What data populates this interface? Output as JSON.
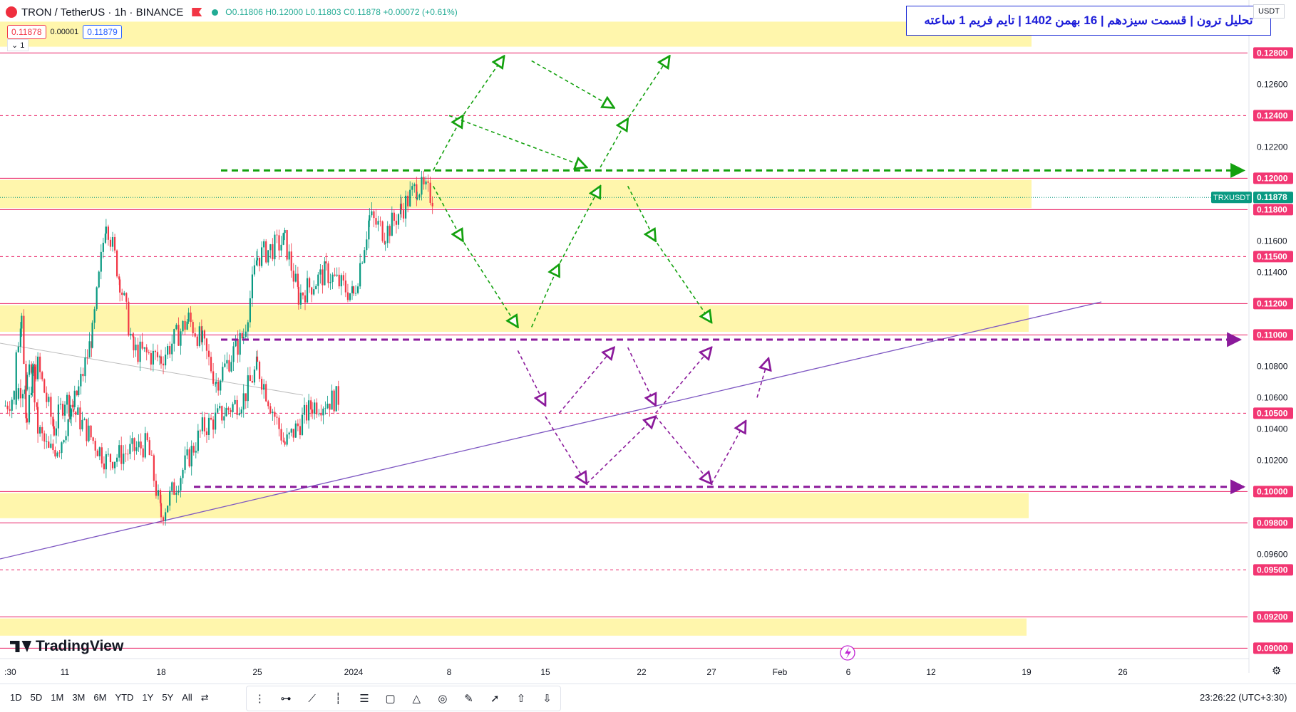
{
  "header": {
    "symbol": "TRON / TetherUS · 1h · BINANCE",
    "ohlc_open": "O0.11806",
    "ohlc_high": "H0.12000",
    "ohlc_low": "L0.11803",
    "ohlc_close": "C0.11878",
    "ohlc_change": "+0.00072 (+0.61%)"
  },
  "quote": {
    "sell": "0.11878",
    "spread": "0.00001",
    "buy": "0.11879"
  },
  "indicator_toggle": "1",
  "title": "تحلیل ترون | قسمت سیزدهم | 16 بهمن 1402 | تایم فریم 1 ساعته",
  "currency": "USDT",
  "brand": "TradingView",
  "periods": [
    "1D",
    "5D",
    "1M",
    "3M",
    "6M",
    "YTD",
    "1Y",
    "5Y",
    "All"
  ],
  "clock": "23:26:22 (UTC+3:30)",
  "icons": [
    "compare-icon",
    "crosshair-icon",
    "trendline-icon",
    "vertical-line-icon",
    "fib-icon",
    "rectangle-icon",
    "triangle-icon",
    "circle-icon",
    "brush-icon",
    "arrow-icon",
    "arrow-up-icon",
    "arrow-down-icon",
    "settings-icon",
    "lightning-icon"
  ],
  "chart_data": {
    "type": "candlestick",
    "symbol_label": "TRXUSDT",
    "last_price": "0.11878",
    "y_axis": {
      "range": [
        0.0897,
        0.1302
      ],
      "ticks": [
        "0.12600",
        "0.12200",
        "0.11600",
        "0.11400",
        "0.10800",
        "0.10600",
        "0.10400",
        "0.10200",
        "0.09600"
      ],
      "highlighted": [
        "0.12800",
        "0.12400",
        "0.12000",
        "0.11800",
        "0.11500",
        "0.11200",
        "0.11000",
        "0.10500",
        "0.10000",
        "0.09800",
        "0.09500",
        "0.09200",
        "0.09000"
      ]
    },
    "x_axis": {
      "ticks": [
        "30",
        "11",
        "18",
        "25",
        "2024",
        "8",
        "15",
        "22",
        "27",
        "Feb",
        "6",
        "12",
        "19",
        "26"
      ]
    },
    "support_resistance": [
      {
        "price": 0.128,
        "style": "solid"
      },
      {
        "price": 0.124,
        "style": "dashed"
      },
      {
        "price": 0.12,
        "style": "solid"
      },
      {
        "price": 0.118,
        "style": "solid"
      },
      {
        "price": 0.115,
        "style": "dashed"
      },
      {
        "price": 0.112,
        "style": "solid"
      },
      {
        "price": 0.11,
        "style": "solid"
      },
      {
        "price": 0.105,
        "style": "dashed"
      },
      {
        "price": 0.1,
        "style": "solid"
      },
      {
        "price": 0.098,
        "style": "solid"
      },
      {
        "price": 0.095,
        "style": "dashed"
      },
      {
        "price": 0.092,
        "style": "solid"
      },
      {
        "price": 0.09,
        "style": "solid"
      }
    ],
    "zones": [
      {
        "top": 0.13,
        "bottom": 0.1284
      },
      {
        "top": 0.1199,
        "bottom": 0.1181
      },
      {
        "top": 0.1119,
        "bottom": 0.1102
      },
      {
        "top": 0.0999,
        "bottom": 0.0983
      },
      {
        "top": 0.0919,
        "bottom": 0.0908
      }
    ],
    "price_path": [
      {
        "date": "Dec 31",
        "price": 0.1055
      },
      {
        "date": "Jan 6",
        "price": 0.108
      },
      {
        "date": "Jan 9",
        "price": 0.104
      },
      {
        "date": "Jan 11",
        "price": 0.106
      },
      {
        "date": "Jan 14",
        "price": 0.102
      },
      {
        "date": "Jan 17",
        "price": 0.103
      },
      {
        "date": "Jan 18",
        "price": 0.0985
      },
      {
        "date": "Jan 21",
        "price": 0.104
      },
      {
        "date": "Jan 24",
        "price": 0.106
      },
      {
        "date": "Jan 25",
        "price": 0.108
      },
      {
        "date": "Jan 27",
        "price": 0.103
      },
      {
        "date": "Jan 29",
        "price": 0.1055
      },
      {
        "date": "Jan 31",
        "price": 0.106
      },
      {
        "date": "Jan 2 2024",
        "price": 0.1095
      },
      {
        "date": "Jan 3 2024",
        "price": 0.1105
      },
      {
        "date": "Jan 4 2024",
        "price": 0.104
      },
      {
        "date": "Jan 5 2024",
        "price": 0.1075
      },
      {
        "date": "Jan 6 2024",
        "price": 0.104
      },
      {
        "date": "Jan 8 2024",
        "price": 0.1025
      },
      {
        "date": "Jan 10 2024",
        "price": 0.103
      },
      {
        "date": "Jan 12 2024",
        "price": 0.1065
      },
      {
        "date": "Jan 13 2024",
        "price": 0.11
      },
      {
        "date": "Jan 14 2024",
        "price": 0.1175
      },
      {
        "date": "Jan 15 2024",
        "price": 0.1135
      },
      {
        "date": "Jan 16 2024",
        "price": 0.109
      },
      {
        "date": "Jan 18 2024",
        "price": 0.1085
      },
      {
        "date": "Jan 20 2024",
        "price": 0.111
      },
      {
        "date": "Jan 21 2024",
        "price": 0.1095
      },
      {
        "date": "Jan 22 2024",
        "price": 0.107
      },
      {
        "date": "Jan 24 2024",
        "price": 0.11
      },
      {
        "date": "Jan 25 2024",
        "price": 0.115
      },
      {
        "date": "Jan 27 2024",
        "price": 0.116
      },
      {
        "date": "Jan 28 2024",
        "price": 0.1125
      },
      {
        "date": "Jan 30 2024",
        "price": 0.114
      },
      {
        "date": "Feb 1 2024",
        "price": 0.1125
      },
      {
        "date": "Feb 2 2024",
        "price": 0.1175
      },
      {
        "date": "Feb 3 2024",
        "price": 0.1165
      },
      {
        "date": "Feb 4 2024",
        "price": 0.118
      },
      {
        "date": "Feb 5 2024",
        "price": 0.1195
      },
      {
        "date": "Feb 6 2024",
        "price": 0.1188
      }
    ],
    "scenarios": {
      "green_paths": [
        [
          [
            "Feb 6",
            0.1205
          ],
          [
            "Feb 8",
            0.124
          ],
          [
            "Feb 11",
            0.1278
          ]
        ],
        [
          [
            "Feb 13",
            0.1275
          ],
          [
            "Feb 19",
            0.1245
          ]
        ],
        [
          [
            "Feb 7",
            0.124
          ],
          [
            "Feb 17",
            0.1207
          ]
        ],
        [
          [
            "Feb 18",
            0.1207
          ],
          [
            "Feb 20",
            0.1238
          ],
          [
            "Feb 23",
            0.1278
          ]
        ],
        [
          [
            "Feb 6",
            0.1195
          ],
          [
            "Feb 8",
            0.116
          ],
          [
            "Feb 12",
            0.1105
          ]
        ],
        [
          [
            "Feb 13",
            0.1105
          ],
          [
            "Feb 15",
            0.1145
          ],
          [
            "Feb 18",
            0.1195
          ]
        ],
        [
          [
            "Feb 20",
            0.1195
          ],
          [
            "Feb 22",
            0.116
          ],
          [
            "Feb 26",
            0.1108
          ]
        ]
      ],
      "purple_paths": [
        [
          [
            "Feb 12",
            0.109
          ],
          [
            "Feb 14",
            0.1055
          ]
        ],
        [
          [
            "Feb 15",
            0.105
          ],
          [
            "Feb 19",
            0.1092
          ]
        ],
        [
          [
            "Feb 14",
            0.1048
          ],
          [
            "Feb 17",
            0.1005
          ]
        ],
        [
          [
            "Feb 17",
            0.1005
          ],
          [
            "Feb 22",
            0.1048
          ]
        ],
        [
          [
            "Feb 20",
            0.1092
          ],
          [
            "Feb 22",
            0.1055
          ]
        ],
        [
          [
            "Feb 22",
            0.105
          ],
          [
            "Feb 26",
            0.1092
          ]
        ],
        [
          [
            "Feb 22",
            0.1048
          ],
          [
            "Feb 26",
            0.1005
          ]
        ],
        [
          [
            "Feb 26",
            0.1005
          ],
          [
            "Feb 29",
            0.1045
          ]
        ],
        [
          [
            "Mar 1",
            0.106
          ],
          [
            "Mar 2",
            0.1085
          ]
        ]
      ],
      "green_level": 0.1205,
      "purple_levels": [
        0.1097,
        0.1003
      ]
    }
  }
}
